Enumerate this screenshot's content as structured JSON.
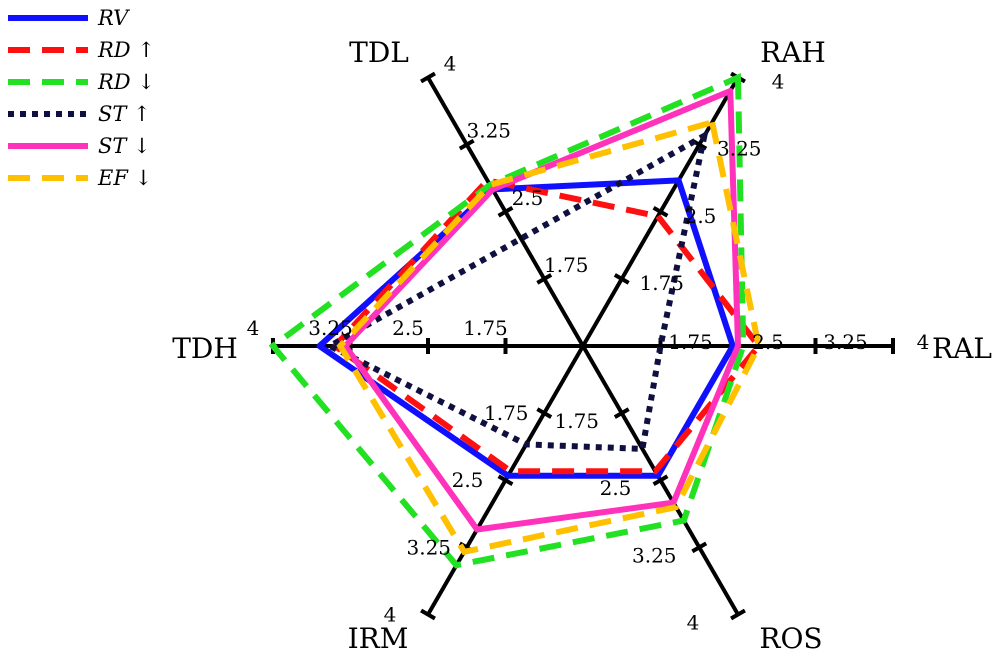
{
  "chart_data": {
    "type": "radar",
    "axes": [
      "RAH",
      "RAL",
      "ROS",
      "IRM",
      "TDH",
      "TDL"
    ],
    "rlim": [
      1,
      4
    ],
    "ticks": [
      1.75,
      2.5,
      3.25,
      4
    ],
    "tick_labels": [
      "1.75",
      "2.5",
      "3.25",
      "4"
    ],
    "series": [
      {
        "name": "RV",
        "color": "#1010ff",
        "dash": "solid",
        "values": [
          2.85,
          2.45,
          2.45,
          2.45,
          3.55,
          2.75
        ]
      },
      {
        "name": "RD ↑",
        "color": "#ff1010",
        "dash": "dashed",
        "values": [
          2.45,
          2.7,
          2.4,
          2.4,
          3.4,
          2.85
        ]
      },
      {
        "name": "RD ↓",
        "color": "#22e022",
        "dash": "dashed",
        "values": [
          4.0,
          2.55,
          2.95,
          3.45,
          4.0,
          2.8
        ]
      },
      {
        "name": "ST ↑",
        "color": "#101040",
        "dash": "dotted",
        "values": [
          3.35,
          1.75,
          2.15,
          2.1,
          3.45,
          2.2
        ]
      },
      {
        "name": "ST ↓",
        "color": "#ff33bb",
        "dash": "solid",
        "values": [
          3.85,
          2.5,
          2.75,
          3.05,
          3.3,
          2.75
        ]
      },
      {
        "name": "EF ↓",
        "color": "#ffc000",
        "dash": "dashed",
        "values": [
          3.5,
          2.7,
          2.8,
          3.3,
          3.35,
          2.8
        ]
      }
    ]
  }
}
